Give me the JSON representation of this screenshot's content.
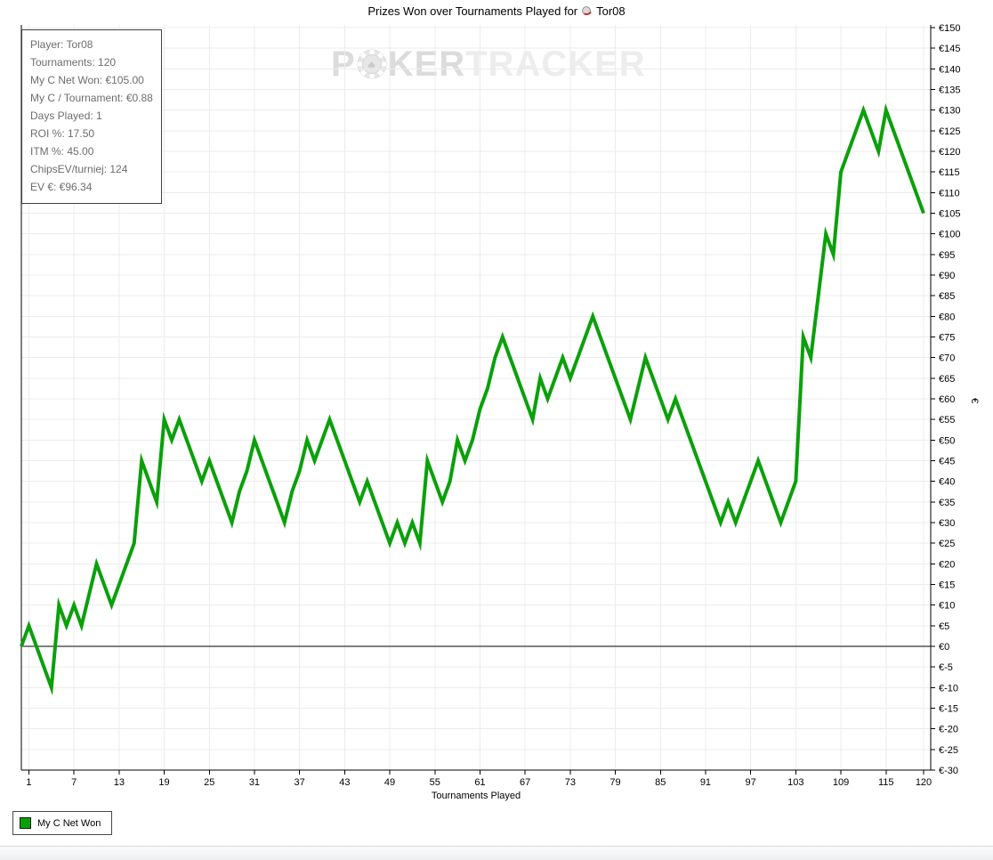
{
  "title": {
    "prefix": "Prizes Won over Tournaments Played for",
    "player": "Tor08"
  },
  "stats_box": {
    "rows": [
      "Player: Tor08",
      "Tournaments: 120",
      "My C Net Won: €105.00",
      "My C / Tournament: €0.88",
      "Days Played: 1",
      "ROI %: 17.50",
      "ITM %: 45.00",
      "ChipsEV/turniej: 124",
      "EV €: €96.34"
    ]
  },
  "watermark": {
    "part1": "P",
    "part2": "KER",
    "part3": "TRACKER",
    "chip_suit": "♠"
  },
  "legend": {
    "label": "My C Net Won",
    "swatch_color": "#0aa00a"
  },
  "colors": {
    "line": "#0aa00a",
    "grid": "#ececec",
    "axis": "#000000",
    "stats_text": "#6d6d6d"
  },
  "chart_data": {
    "type": "line",
    "title": "Prizes Won over Tournaments Played for Tor08",
    "xlabel": "Tournaments Played",
    "ylabel": "€",
    "currency_prefix": "€",
    "xlim": [
      0,
      120
    ],
    "ylim": [
      -30,
      150
    ],
    "y_tick_step": 5,
    "x_ticks": [
      1,
      7,
      13,
      19,
      25,
      31,
      37,
      43,
      49,
      55,
      61,
      67,
      73,
      79,
      85,
      91,
      97,
      103,
      109,
      115,
      120
    ],
    "grid": true,
    "zero_line": true,
    "legend_position": "bottom-left",
    "series": [
      {
        "name": "My C Net Won",
        "color": "#0aa00a",
        "x_start": 0,
        "values": [
          0,
          5,
          0,
          -5,
          -10,
          10,
          5,
          10,
          5,
          12.5,
          20,
          15,
          10,
          15,
          20,
          25,
          45,
          40,
          35,
          55,
          50,
          55,
          50,
          45,
          40,
          45,
          40,
          35,
          30,
          37.5,
          42.5,
          50,
          45,
          40,
          35,
          30,
          37.5,
          42.5,
          50,
          45,
          50,
          55,
          50,
          45,
          40,
          35,
          40,
          35,
          30,
          25,
          30,
          25,
          30,
          25,
          45,
          40,
          35,
          40,
          50,
          45,
          50,
          57.5,
          62.5,
          70,
          75,
          70,
          65,
          60,
          55,
          65,
          60,
          65,
          70,
          65,
          70,
          75,
          80,
          75,
          70,
          65,
          60,
          55,
          62.5,
          70,
          65,
          60,
          55,
          60,
          55,
          50,
          45,
          40,
          35,
          30,
          35,
          30,
          35,
          40,
          45,
          40,
          35,
          30,
          35,
          40,
          75,
          70,
          85,
          100,
          95,
          115,
          120,
          125,
          130,
          125,
          120,
          130,
          125,
          120,
          115,
          110,
          105
        ]
      }
    ]
  }
}
